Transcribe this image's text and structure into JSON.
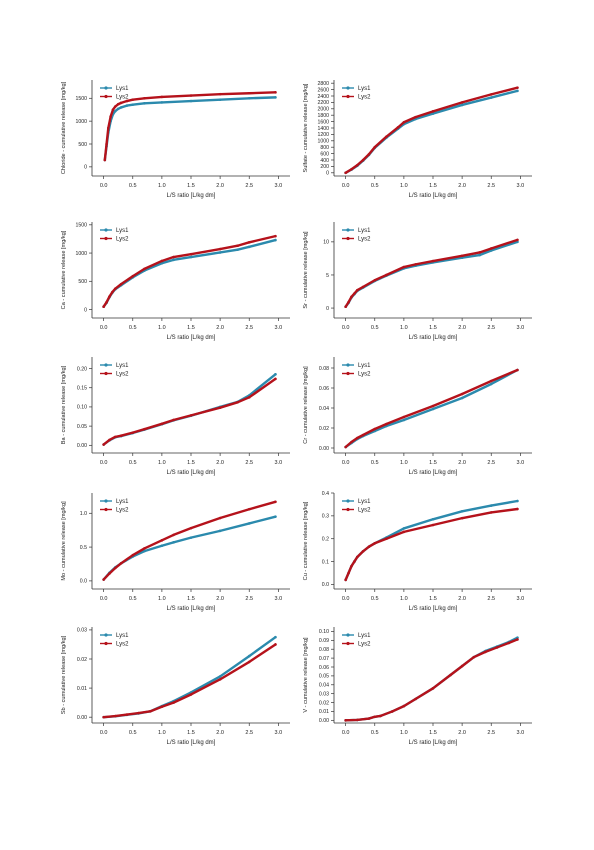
{
  "colors": {
    "Lys1": "#2b8aad",
    "Lys2": "#b5121b"
  },
  "chart_data": [
    {
      "type": "line",
      "ylabel": "Chloride - cumulative release [mg/kg]",
      "xlabel": "L/S ratio [L/kg dm]",
      "xticks": [
        "0.0",
        "0.5",
        "1.0",
        "1.5",
        "2.0",
        "2.5",
        "3.0"
      ],
      "yticks": [
        "0",
        "500",
        "1000",
        "1500"
      ],
      "xlim": [
        -0.2,
        3.2
      ],
      "ylim": [
        -200,
        1900
      ],
      "legend": "top-left",
      "series": [
        {
          "name": "Lys1",
          "x": [
            0.02,
            0.05,
            0.08,
            0.12,
            0.16,
            0.2,
            0.25,
            0.3,
            0.4,
            0.5,
            0.7,
            1.0,
            1.5,
            2.0,
            2.5,
            2.95
          ],
          "y": [
            150,
            450,
            750,
            1000,
            1150,
            1220,
            1270,
            1300,
            1340,
            1360,
            1390,
            1410,
            1440,
            1470,
            1500,
            1520
          ]
        },
        {
          "name": "Lys2",
          "x": [
            0.02,
            0.05,
            0.08,
            0.12,
            0.16,
            0.2,
            0.25,
            0.3,
            0.4,
            0.5,
            0.7,
            1.0,
            1.5,
            2.0,
            2.5,
            2.95
          ],
          "y": [
            150,
            500,
            850,
            1100,
            1250,
            1320,
            1370,
            1400,
            1440,
            1470,
            1500,
            1530,
            1560,
            1590,
            1610,
            1630
          ]
        }
      ]
    },
    {
      "type": "line",
      "ylabel": "Sulfate - cumulative release [mg/kg]",
      "xlabel": "L/S ratio [L/kg dm]",
      "xticks": [
        "0.0",
        "0.5",
        "1.0",
        "1.5",
        "2.0",
        "2.5",
        "3.0"
      ],
      "yticks": [
        "0",
        "200",
        "400",
        "600",
        "800",
        "1000",
        "1200",
        "1400",
        "1600",
        "1800",
        "2000",
        "2200",
        "2400",
        "2600",
        "2800"
      ],
      "xlim": [
        -0.2,
        3.2
      ],
      "ylim": [
        -100,
        2900
      ],
      "legend": "top-left",
      "series": [
        {
          "name": "Lys1",
          "x": [
            0.0,
            0.1,
            0.2,
            0.3,
            0.4,
            0.5,
            0.7,
            0.9,
            1.0,
            1.2,
            1.5,
            2.0,
            2.5,
            2.95
          ],
          "y": [
            0,
            100,
            220,
            380,
            560,
            780,
            1100,
            1380,
            1520,
            1680,
            1850,
            2120,
            2350,
            2560
          ]
        },
        {
          "name": "Lys2",
          "x": [
            0.0,
            0.1,
            0.2,
            0.3,
            0.4,
            0.5,
            0.7,
            0.9,
            1.0,
            1.2,
            1.5,
            2.0,
            2.5,
            2.95
          ],
          "y": [
            0,
            110,
            240,
            400,
            580,
            800,
            1130,
            1420,
            1580,
            1740,
            1920,
            2200,
            2450,
            2660
          ]
        }
      ]
    },
    {
      "type": "line",
      "ylabel": "Ca - cumulative release [mg/kg]",
      "xlabel": "L/S ratio [L/kg dm]",
      "xticks": [
        "0.0",
        "0.5",
        "1.0",
        "1.5",
        "2.0",
        "2.5",
        "3.0"
      ],
      "yticks": [
        "0",
        "500",
        "1000",
        "1500"
      ],
      "xlim": [
        -0.2,
        3.2
      ],
      "ylim": [
        -150,
        1550
      ],
      "legend": "top-left",
      "series": [
        {
          "name": "Lys1",
          "x": [
            0.0,
            0.05,
            0.1,
            0.15,
            0.2,
            0.3,
            0.5,
            0.7,
            1.0,
            1.2,
            1.5,
            2.0,
            2.3,
            2.5,
            2.95
          ],
          "y": [
            50,
            120,
            220,
            300,
            360,
            430,
            570,
            690,
            820,
            880,
            930,
            1010,
            1060,
            1110,
            1230
          ]
        },
        {
          "name": "Lys2",
          "x": [
            0.0,
            0.05,
            0.1,
            0.15,
            0.2,
            0.3,
            0.5,
            0.7,
            1.0,
            1.2,
            1.5,
            2.0,
            2.3,
            2.5,
            2.95
          ],
          "y": [
            50,
            130,
            230,
            310,
            370,
            450,
            590,
            720,
            860,
            930,
            980,
            1070,
            1130,
            1190,
            1300
          ]
        }
      ]
    },
    {
      "type": "line",
      "ylabel": "Sr - cumulative release [mg/kg]",
      "xlabel": "L/S ratio [L/kg dm]",
      "xticks": [
        "0.0",
        "0.5",
        "1.0",
        "1.5",
        "2.0",
        "2.5",
        "3.0"
      ],
      "yticks": [
        "0",
        "5",
        "10"
      ],
      "xlim": [
        -0.2,
        3.2
      ],
      "ylim": [
        -1.5,
        13
      ],
      "legend": "top-left",
      "series": [
        {
          "name": "Lys1",
          "x": [
            0.0,
            0.05,
            0.1,
            0.15,
            0.2,
            0.3,
            0.5,
            0.7,
            1.0,
            1.2,
            1.5,
            2.0,
            2.3,
            2.5,
            2.95
          ],
          "y": [
            0.2,
            0.8,
            1.6,
            2.1,
            2.6,
            3.1,
            4.1,
            4.9,
            6.0,
            6.4,
            6.9,
            7.6,
            8.0,
            8.7,
            10.0
          ]
        },
        {
          "name": "Lys2",
          "x": [
            0.0,
            0.05,
            0.1,
            0.15,
            0.2,
            0.3,
            0.5,
            0.7,
            1.0,
            1.2,
            1.5,
            2.0,
            2.3,
            2.5,
            2.95
          ],
          "y": [
            0.2,
            0.9,
            1.7,
            2.2,
            2.7,
            3.2,
            4.2,
            5.0,
            6.2,
            6.6,
            7.1,
            7.9,
            8.4,
            9.0,
            10.3
          ]
        }
      ]
    },
    {
      "type": "line",
      "ylabel": "Ba - cumulative release [mg/kg]",
      "xlabel": "L/S ratio [L/kg dm]",
      "xticks": [
        "0.0",
        "0.5",
        "1.0",
        "1.5",
        "2.0",
        "2.5",
        "3.0"
      ],
      "yticks": [
        "0.00",
        "0.05",
        "0.10",
        "0.15",
        "0.20"
      ],
      "xlim": [
        -0.2,
        3.2
      ],
      "ylim": [
        -0.02,
        0.23
      ],
      "legend": "top-left",
      "series": [
        {
          "name": "Lys1",
          "x": [
            0.0,
            0.1,
            0.2,
            0.3,
            0.5,
            0.7,
            1.0,
            1.2,
            1.5,
            2.0,
            2.3,
            2.5,
            2.95
          ],
          "y": [
            0.002,
            0.013,
            0.021,
            0.024,
            0.032,
            0.041,
            0.055,
            0.065,
            0.077,
            0.1,
            0.113,
            0.13,
            0.185
          ]
        },
        {
          "name": "Lys2",
          "x": [
            0.0,
            0.1,
            0.2,
            0.3,
            0.5,
            0.7,
            1.0,
            1.2,
            1.5,
            2.0,
            2.3,
            2.5,
            2.95
          ],
          "y": [
            0.002,
            0.014,
            0.022,
            0.025,
            0.033,
            0.042,
            0.056,
            0.066,
            0.078,
            0.098,
            0.112,
            0.125,
            0.173
          ]
        }
      ]
    },
    {
      "type": "line",
      "ylabel": "Cr - cumulative release [mg/kg]",
      "xlabel": "L/S ratio [L/kg dm]",
      "xticks": [
        "0.0",
        "0.5",
        "1.0",
        "1.5",
        "2.0",
        "2.5",
        "3.0"
      ],
      "yticks": [
        "0.00",
        "0.02",
        "0.04",
        "0.06",
        "0.08"
      ],
      "xlim": [
        -0.2,
        3.2
      ],
      "ylim": [
        -0.005,
        0.091
      ],
      "legend": "top-left",
      "series": [
        {
          "name": "Lys1",
          "x": [
            0.0,
            0.1,
            0.2,
            0.3,
            0.5,
            0.7,
            1.0,
            1.5,
            2.0,
            2.5,
            2.95
          ],
          "y": [
            0.001,
            0.005,
            0.009,
            0.012,
            0.017,
            0.022,
            0.028,
            0.039,
            0.05,
            0.064,
            0.078
          ]
        },
        {
          "name": "Lys2",
          "x": [
            0.0,
            0.1,
            0.2,
            0.3,
            0.5,
            0.7,
            1.0,
            1.5,
            2.0,
            2.5,
            2.95
          ],
          "y": [
            0.001,
            0.006,
            0.01,
            0.013,
            0.019,
            0.024,
            0.031,
            0.042,
            0.054,
            0.067,
            0.078
          ]
        }
      ]
    },
    {
      "type": "line",
      "ylabel": "Mo - cumulative release [mg/kg]",
      "xlabel": "L/S ratio [L/kg dm]",
      "xticks": [
        "0.0",
        "0.5",
        "1.0",
        "1.5",
        "2.0",
        "2.5",
        "3.0"
      ],
      "yticks": [
        "0.0",
        "0.5",
        "1.0"
      ],
      "xlim": [
        -0.2,
        3.2
      ],
      "ylim": [
        -0.12,
        1.3
      ],
      "legend": "top-left",
      "series": [
        {
          "name": "Lys1",
          "x": [
            0.0,
            0.1,
            0.2,
            0.3,
            0.5,
            0.7,
            1.0,
            1.2,
            1.5,
            2.0,
            2.5,
            2.95
          ],
          "y": [
            0.02,
            0.12,
            0.2,
            0.26,
            0.36,
            0.44,
            0.52,
            0.57,
            0.64,
            0.74,
            0.85,
            0.95
          ]
        },
        {
          "name": "Lys2",
          "x": [
            0.0,
            0.1,
            0.2,
            0.3,
            0.5,
            0.7,
            1.0,
            1.2,
            1.5,
            2.0,
            2.5,
            2.95
          ],
          "y": [
            0.02,
            0.11,
            0.19,
            0.26,
            0.38,
            0.48,
            0.6,
            0.68,
            0.78,
            0.93,
            1.06,
            1.17
          ]
        }
      ]
    },
    {
      "type": "line",
      "ylabel": "Cu - cumulative release [mg/kg]",
      "xlabel": "L/S ratio [L/kg dm]",
      "xticks": [
        "0.0",
        "0.5",
        "1.0",
        "1.5",
        "2.0",
        "2.5",
        "3.0"
      ],
      "yticks": [
        "0.0",
        "0.1",
        "0.2",
        "0.3",
        "0.4"
      ],
      "xlim": [
        -0.2,
        3.2
      ],
      "ylim": [
        -0.02,
        0.4
      ],
      "legend": "top-left",
      "series": [
        {
          "name": "Lys1",
          "x": [
            0.0,
            0.05,
            0.1,
            0.15,
            0.2,
            0.3,
            0.4,
            0.5,
            0.7,
            1.0,
            1.5,
            2.0,
            2.5,
            2.95
          ],
          "y": [
            0.02,
            0.05,
            0.08,
            0.1,
            0.12,
            0.145,
            0.165,
            0.18,
            0.205,
            0.245,
            0.285,
            0.32,
            0.345,
            0.365
          ]
        },
        {
          "name": "Lys2",
          "x": [
            0.0,
            0.05,
            0.1,
            0.15,
            0.2,
            0.3,
            0.4,
            0.5,
            0.7,
            1.0,
            1.5,
            2.0,
            2.5,
            2.95
          ],
          "y": [
            0.02,
            0.05,
            0.08,
            0.1,
            0.12,
            0.145,
            0.165,
            0.18,
            0.2,
            0.23,
            0.26,
            0.29,
            0.315,
            0.33
          ]
        }
      ]
    },
    {
      "type": "line",
      "ylabel": "Sb - cumulative release [mg/kg]",
      "xlabel": "L/S ratio [L/kg dm]",
      "xticks": [
        "0.0",
        "0.5",
        "1.0",
        "1.5",
        "2.0",
        "2.5",
        "3.0"
      ],
      "yticks": [
        "0.00",
        "0.01",
        "0.02",
        "0.03"
      ],
      "xlim": [
        -0.2,
        3.2
      ],
      "ylim": [
        -0.002,
        0.031
      ],
      "legend": "top-left",
      "series": [
        {
          "name": "Lys1",
          "x": [
            0.0,
            0.2,
            0.4,
            0.6,
            0.8,
            1.0,
            1.2,
            1.5,
            2.0,
            2.5,
            2.95
          ],
          "y": [
            0.0,
            0.0003,
            0.0008,
            0.0013,
            0.002,
            0.0038,
            0.0055,
            0.0085,
            0.014,
            0.021,
            0.0275
          ]
        },
        {
          "name": "Lys2",
          "x": [
            0.0,
            0.2,
            0.4,
            0.6,
            0.8,
            1.0,
            1.2,
            1.5,
            2.0,
            2.5,
            2.95
          ],
          "y": [
            0.0,
            0.0004,
            0.0009,
            0.0014,
            0.002,
            0.0036,
            0.005,
            0.0078,
            0.013,
            0.019,
            0.025
          ]
        }
      ]
    },
    {
      "type": "line",
      "ylabel": "V - cumulative release [mg/kg]",
      "xlabel": "L/S ratio [L/kg dm]",
      "xticks": [
        "0.0",
        "0.5",
        "1.0",
        "1.5",
        "2.0",
        "2.5",
        "3.0"
      ],
      "yticks": [
        "0.00",
        "0.01",
        "0.02",
        "0.03",
        "0.04",
        "0.05",
        "0.06",
        "0.07",
        "0.08",
        "0.09",
        "0.10"
      ],
      "xlim": [
        -0.2,
        3.2
      ],
      "ylim": [
        -0.003,
        0.105
      ],
      "legend": "top-left",
      "series": [
        {
          "name": "Lys1",
          "x": [
            0.0,
            0.2,
            0.4,
            0.5,
            0.6,
            0.8,
            1.0,
            1.2,
            1.5,
            1.8,
            2.0,
            2.2,
            2.4,
            2.6,
            2.8,
            2.95
          ],
          "y": [
            0.0,
            0.0005,
            0.002,
            0.004,
            0.005,
            0.01,
            0.016,
            0.024,
            0.036,
            0.051,
            0.061,
            0.071,
            0.078,
            0.083,
            0.088,
            0.093
          ]
        },
        {
          "name": "Lys2",
          "x": [
            0.0,
            0.2,
            0.4,
            0.5,
            0.6,
            0.8,
            1.0,
            1.2,
            1.5,
            1.8,
            2.0,
            2.2,
            2.4,
            2.6,
            2.8,
            2.95
          ],
          "y": [
            0.0,
            0.0005,
            0.002,
            0.004,
            0.005,
            0.01,
            0.016,
            0.024,
            0.036,
            0.051,
            0.061,
            0.071,
            0.077,
            0.082,
            0.087,
            0.091
          ]
        }
      ]
    }
  ]
}
